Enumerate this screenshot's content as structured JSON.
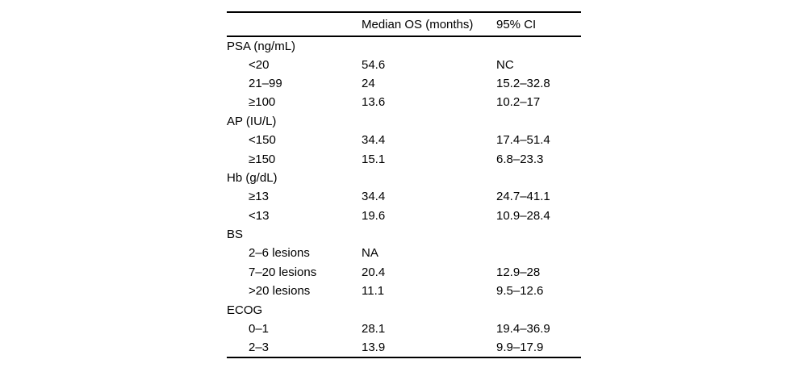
{
  "page": {
    "background": "#ffffff",
    "text_color": "#000000",
    "rule_color": "#000000"
  },
  "table": {
    "columns": [
      {
        "label": ""
      },
      {
        "label": "Median OS (months)"
      },
      {
        "label": "95% CI"
      }
    ],
    "rows": [
      {
        "label": "PSA (ng/mL)",
        "median_os": "",
        "ci": "",
        "group": true
      },
      {
        "label": "<20",
        "median_os": "54.6",
        "ci": "NC",
        "group": false
      },
      {
        "label": "21–99",
        "median_os": "24",
        "ci": "15.2–32.8",
        "group": false
      },
      {
        "label": "≥100",
        "median_os": "13.6",
        "ci": "10.2–17",
        "group": false
      },
      {
        "label": "AP (IU/L)",
        "median_os": "",
        "ci": "",
        "group": true
      },
      {
        "label": "<150",
        "median_os": "34.4",
        "ci": "17.4–51.4",
        "group": false
      },
      {
        "label": "≥150",
        "median_os": "15.1",
        "ci": "6.8–23.3",
        "group": false
      },
      {
        "label": "Hb (g/dL)",
        "median_os": "",
        "ci": "",
        "group": true
      },
      {
        "label": "≥13",
        "median_os": "34.4",
        "ci": "24.7–41.1",
        "group": false
      },
      {
        "label": "<13",
        "median_os": "19.6",
        "ci": "10.9–28.4",
        "group": false
      },
      {
        "label": "BS",
        "median_os": "",
        "ci": "",
        "group": true
      },
      {
        "label": "2–6 lesions",
        "median_os": "NA",
        "ci": "",
        "group": false
      },
      {
        "label": "7–20 lesions",
        "median_os": "20.4",
        "ci": "12.9–28",
        "group": false
      },
      {
        "label": ">20 lesions",
        "median_os": "11.1",
        "ci": "9.5–12.6",
        "group": false
      },
      {
        "label": "ECOG",
        "median_os": "",
        "ci": "",
        "group": true
      },
      {
        "label": "0–1",
        "median_os": "28.1",
        "ci": "19.4–36.9",
        "group": false
      },
      {
        "label": "2–3",
        "median_os": "13.9",
        "ci": "9.9–17.9",
        "group": false
      }
    ]
  }
}
